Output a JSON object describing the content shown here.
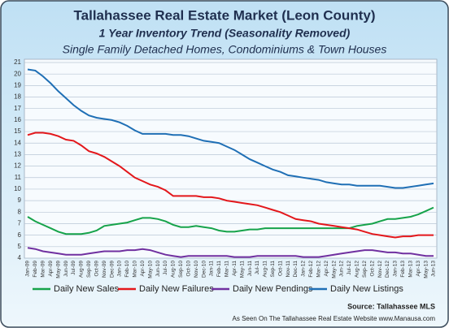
{
  "chart_data": {
    "type": "line",
    "title": "Tallahassee Real Estate Market (Leon County)",
    "subtitle": "1 Year Inventory Trend (Seasonality Removed)",
    "subtitle2": "Single Family Detached Homes, Condominiums & Town Houses",
    "source": "Source: Tallahassee MLS",
    "credit": "As Seen On The Tallahassee Real Estate Website www.Manausa.com",
    "categories": [
      "Jan-09",
      "Feb-09",
      "Mar-09",
      "Apr-09",
      "May-09",
      "Jun-09",
      "Jul-09",
      "Aug-09",
      "Sep-09",
      "Oct-09",
      "Nov-09",
      "Dec-09",
      "Jan-10",
      "Feb-10",
      "Mar-10",
      "Apr-10",
      "May-10",
      "Jun-10",
      "Jul-10",
      "Aug-10",
      "Sep-10",
      "Oct-10",
      "Nov-10",
      "Dec-10",
      "Jan-11",
      "Feb-11",
      "Mar-11",
      "Apr-11",
      "May-11",
      "Jun-11",
      "Jul-11",
      "Aug-11",
      "Sep-11",
      "Oct-11",
      "Nov-11",
      "Dec-11",
      "Jan-12",
      "Feb-12",
      "Mar-12",
      "Apr-12",
      "May-12",
      "Jun-12",
      "Jul-12",
      "Aug-12",
      "Sep-12",
      "Oct-12",
      "Nov-12",
      "Dec-12",
      "Jan-13",
      "Feb-13",
      "Mar-13",
      "Apr-13",
      "May-13",
      "Jun-13"
    ],
    "series": [
      {
        "name": "Daily New Sales",
        "color": "#16a34a",
        "values": [
          7.6,
          7.2,
          6.9,
          6.6,
          6.3,
          6.1,
          6.1,
          6.1,
          6.2,
          6.4,
          6.8,
          6.9,
          7.0,
          7.1,
          7.3,
          7.5,
          7.5,
          7.4,
          7.2,
          6.9,
          6.7,
          6.7,
          6.8,
          6.7,
          6.6,
          6.4,
          6.3,
          6.3,
          6.4,
          6.5,
          6.5,
          6.6,
          6.6,
          6.6,
          6.6,
          6.6,
          6.6,
          6.6,
          6.6,
          6.6,
          6.6,
          6.6,
          6.6,
          6.8,
          6.9,
          7.0,
          7.2,
          7.4,
          7.4,
          7.5,
          7.6,
          7.8,
          8.1,
          8.4
        ]
      },
      {
        "name": "Daily New Failures",
        "color": "#e3171b",
        "values": [
          14.7,
          14.9,
          14.9,
          14.8,
          14.6,
          14.3,
          14.2,
          13.8,
          13.3,
          13.1,
          12.8,
          12.4,
          12.0,
          11.5,
          11.0,
          10.7,
          10.4,
          10.2,
          9.9,
          9.4,
          9.4,
          9.4,
          9.4,
          9.3,
          9.3,
          9.2,
          9.0,
          8.9,
          8.8,
          8.7,
          8.6,
          8.4,
          8.2,
          8.0,
          7.7,
          7.4,
          7.3,
          7.2,
          7.0,
          6.9,
          6.8,
          6.7,
          6.6,
          6.5,
          6.3,
          6.1,
          6.0,
          5.9,
          5.8,
          5.9,
          5.9,
          6.0,
          6.0,
          6.0
        ]
      },
      {
        "name": "Daily New Pendings",
        "color": "#7030a0",
        "values": [
          4.9,
          4.8,
          4.6,
          4.5,
          4.4,
          4.3,
          4.3,
          4.3,
          4.4,
          4.5,
          4.6,
          4.6,
          4.6,
          4.7,
          4.7,
          4.8,
          4.7,
          4.5,
          4.3,
          4.2,
          4.1,
          4.2,
          4.2,
          4.2,
          4.2,
          4.2,
          4.2,
          4.1,
          4.1,
          4.1,
          4.2,
          4.2,
          4.2,
          4.2,
          4.2,
          4.2,
          4.1,
          4.1,
          4.1,
          4.2,
          4.3,
          4.4,
          4.5,
          4.6,
          4.7,
          4.7,
          4.6,
          4.5,
          4.5,
          4.4,
          4.4,
          4.3,
          4.2,
          4.2
        ]
      },
      {
        "name": "Daily New Listings",
        "color": "#1f6fb5",
        "values": [
          20.4,
          20.3,
          19.8,
          19.2,
          18.5,
          17.9,
          17.3,
          16.8,
          16.4,
          16.2,
          16.1,
          16.0,
          15.8,
          15.5,
          15.1,
          14.8,
          14.8,
          14.8,
          14.8,
          14.7,
          14.7,
          14.6,
          14.4,
          14.2,
          14.1,
          14.0,
          13.7,
          13.4,
          13.0,
          12.6,
          12.3,
          12.0,
          11.7,
          11.5,
          11.2,
          11.1,
          11.0,
          10.9,
          10.8,
          10.6,
          10.5,
          10.4,
          10.4,
          10.3,
          10.3,
          10.3,
          10.3,
          10.2,
          10.1,
          10.1,
          10.2,
          10.3,
          10.4,
          10.5
        ]
      }
    ],
    "ylim": [
      4,
      21
    ],
    "yticks": [
      4,
      5,
      6,
      7,
      8,
      9,
      10,
      11,
      12,
      13,
      14,
      15,
      16,
      17,
      18,
      19,
      20,
      21
    ],
    "grid": true
  }
}
